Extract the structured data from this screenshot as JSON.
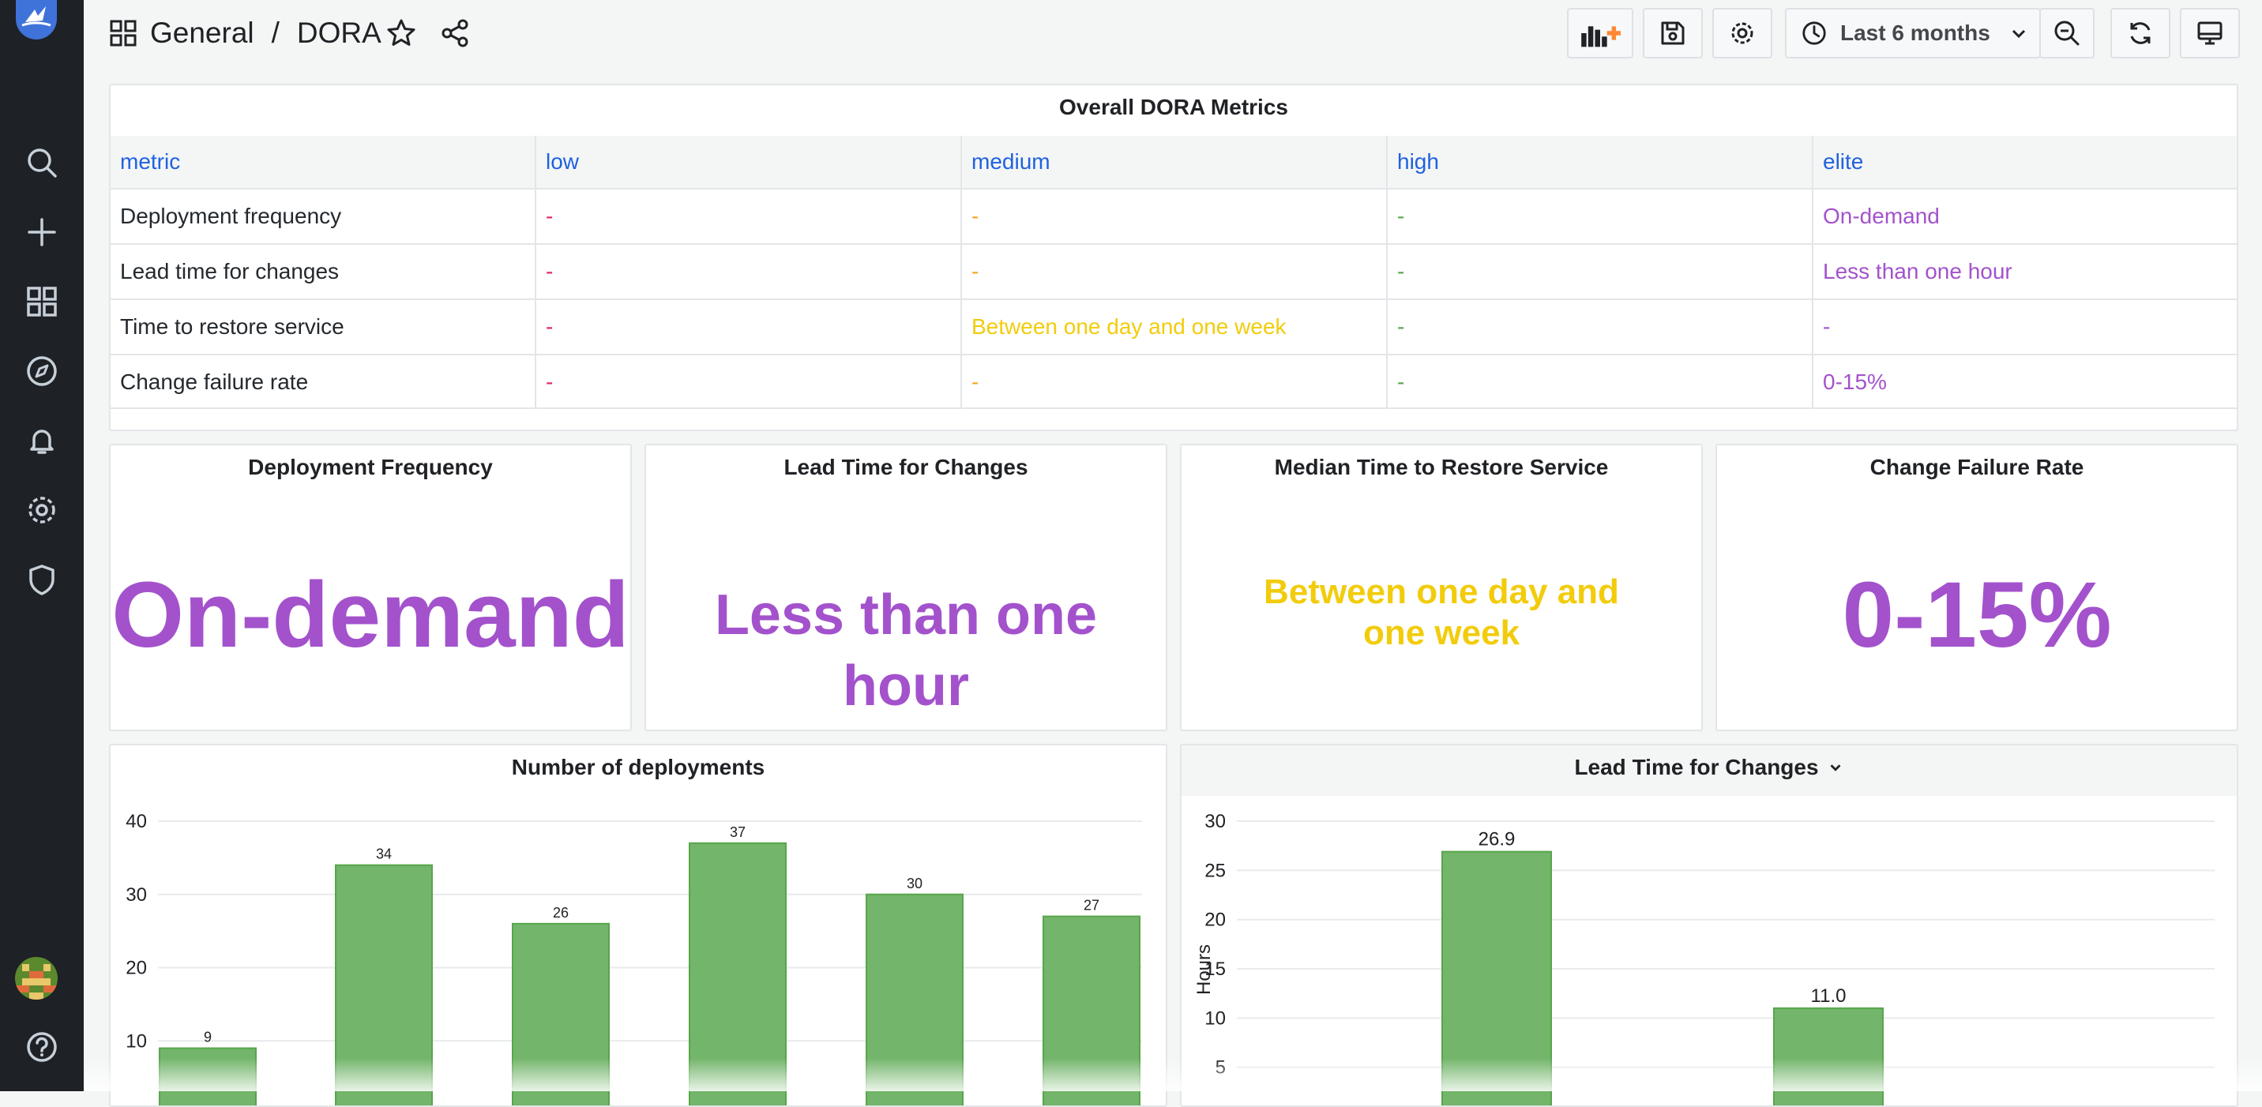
{
  "breadcrumb": {
    "folder": "General",
    "separator": "/",
    "dashboard": "DORA"
  },
  "toolbar": {
    "time_range": "Last 6 months"
  },
  "overall_table": {
    "title": "Overall DORA Metrics",
    "headers": [
      "metric",
      "low",
      "medium",
      "high",
      "elite"
    ],
    "rows": [
      [
        "Deployment frequency",
        "-",
        "-",
        "-",
        "On-demand"
      ],
      [
        "Lead time for changes",
        "-",
        "-",
        "-",
        "Less than one hour"
      ],
      [
        "Time to restore service",
        "-",
        "Between one day and one week",
        "-",
        "-"
      ],
      [
        "Change failure rate",
        "-",
        "-",
        "-",
        "0-15%"
      ]
    ]
  },
  "stats": [
    {
      "title": "Deployment Frequency",
      "value": "On-demand",
      "color": "#a352cc"
    },
    {
      "title": "Lead Time for Changes",
      "value": "Less than one hour",
      "color": "#a352cc"
    },
    {
      "title": "Median Time to Restore Service",
      "value": "Between one day and one week",
      "color": "#f2cc0c"
    },
    {
      "title": "Change Failure Rate",
      "value": "0-15%",
      "color": "#a352cc"
    }
  ],
  "colors": {
    "bar": "#73b56a",
    "bar_border": "#56a64b",
    "low": "#e0226e",
    "medium": "#f5a623",
    "high": "#56a64b",
    "elite": "#a352cc"
  },
  "chart_data": [
    {
      "type": "bar",
      "title": "Number of deployments",
      "values": [
        9,
        34,
        26,
        37,
        30,
        27
      ],
      "yticks": [
        10,
        20,
        30,
        40
      ],
      "ylim": [
        0,
        40
      ]
    },
    {
      "type": "bar",
      "title": "Lead Time for Changes",
      "ylabel": "Hours",
      "values": [
        26.9,
        11.0
      ],
      "yticks": [
        5,
        10,
        15,
        20,
        25,
        30
      ],
      "ylim": [
        0,
        30
      ]
    }
  ]
}
